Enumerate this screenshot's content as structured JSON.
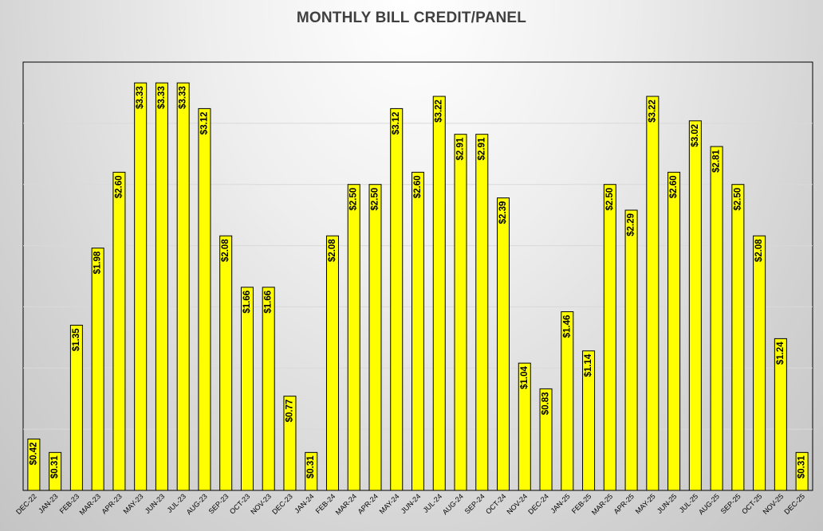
{
  "chart_data": {
    "type": "bar",
    "title": "MONTHLY BILL CREDIT/PANEL",
    "xlabel": "",
    "ylabel": "",
    "ylim": [
      0,
      3.5
    ],
    "grid": true,
    "legend": "none",
    "bar_color": "#ffff00",
    "bar_outline_color": "#000000",
    "categories": [
      "DEC-22",
      "JAN-23",
      "FEB-23",
      "MAR-23",
      "APR-23",
      "MAY-23",
      "JUN-23",
      "JUL-23",
      "AUG-23",
      "SEP-23",
      "OCT-23",
      "NOV-23",
      "DEC-23",
      "JAN-24",
      "FEB-24",
      "MAR-24",
      "APR-24",
      "MAY-24",
      "JUN-24",
      "JUL-24",
      "AUG-24",
      "SEP-24",
      "OCT-24",
      "NOV-24",
      "DEC-24",
      "JAN-25",
      "FEB-25",
      "MAR-25",
      "APR-25",
      "MAY-25",
      "JUN-25",
      "JUL-25",
      "AUG-25",
      "SEP-25",
      "OCT-25",
      "NOV-25",
      "DEC-25"
    ],
    "values": [
      0.42,
      0.31,
      1.35,
      1.98,
      2.6,
      3.33,
      3.33,
      3.33,
      3.12,
      2.08,
      1.66,
      1.66,
      0.77,
      0.31,
      2.08,
      2.5,
      2.5,
      3.12,
      2.6,
      3.22,
      2.91,
      2.91,
      2.39,
      1.04,
      0.83,
      1.46,
      1.14,
      2.5,
      2.29,
      3.22,
      2.6,
      3.02,
      2.81,
      2.5,
      2.08,
      1.24,
      0.31
    ],
    "data_labels": [
      "$0.42",
      "$0.31",
      "$1.35",
      "$1.98",
      "$2.60",
      "$3.33",
      "$3.33",
      "$3.33",
      "$3.12",
      "$2.08",
      "$1.66",
      "$1.66",
      "$0.77",
      "$0.31",
      "$2.08",
      "$2.50",
      "$2.50",
      "$3.12",
      "$2.60",
      "$3.22",
      "$2.91",
      "$2.91",
      "$2.39",
      "$1.04",
      "$0.83",
      "$1.46",
      "$1.14",
      "$2.50",
      "$2.29",
      "$3.22",
      "$2.60",
      "$3.02",
      "$2.81",
      "$2.50",
      "$2.08",
      "$1.24",
      "$0.31"
    ]
  }
}
